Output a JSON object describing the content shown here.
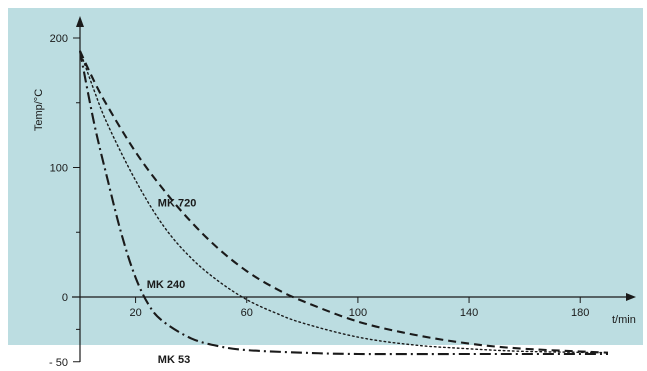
{
  "chart_data": {
    "type": "line",
    "title": "",
    "xlabel": "t/min",
    "ylabel": "Temp/°C",
    "xlim": [
      0,
      195
    ],
    "ylim": [
      -50,
      210
    ],
    "x_ticks": [
      20,
      60,
      100,
      140,
      180
    ],
    "x_tick_labels": [
      "20",
      "60",
      "100",
      "140",
      "180"
    ],
    "y_ticks": [
      -50,
      0,
      100,
      200
    ],
    "y_tick_labels": [
      "- 50",
      "0",
      "100",
      "200"
    ],
    "grid": false,
    "legend": "inline labels",
    "background_color": "#bcdde1",
    "line_color": "#1a1a1a",
    "series": [
      {
        "name": "MK 720",
        "style": "dashed",
        "x": [
          0,
          5,
          10,
          20,
          30,
          40,
          50,
          60,
          70,
          80,
          100,
          120,
          140,
          160,
          190
        ],
        "y": [
          190,
          167,
          147,
          112,
          83,
          58,
          37,
          20,
          7,
          -3,
          -19,
          -29,
          -36,
          -40,
          -43
        ]
      },
      {
        "name": "MK 240",
        "style": "dotted",
        "x": [
          0,
          5,
          10,
          20,
          30,
          40,
          50,
          60,
          70,
          80,
          100,
          120,
          140,
          160,
          190
        ],
        "y": [
          190,
          160,
          133,
          90,
          55,
          30,
          12,
          -2,
          -12,
          -20,
          -31,
          -37,
          -40,
          -42,
          -43
        ]
      },
      {
        "name": "MK 53",
        "style": "dash-dot",
        "x": [
          0,
          5,
          10,
          15,
          20,
          25,
          30,
          40,
          50,
          60,
          80,
          100,
          140,
          190
        ],
        "y": [
          190,
          135,
          90,
          48,
          15,
          -7,
          -19,
          -32,
          -38,
          -41,
          -43,
          -44,
          -44,
          -44
        ]
      }
    ],
    "annotations": [
      {
        "text": "MK 720",
        "x": 28,
        "y": 73
      },
      {
        "text": "MK 240",
        "x": 24,
        "y": 10
      },
      {
        "text": "MK 53",
        "x": 28,
        "y": -48
      }
    ]
  }
}
